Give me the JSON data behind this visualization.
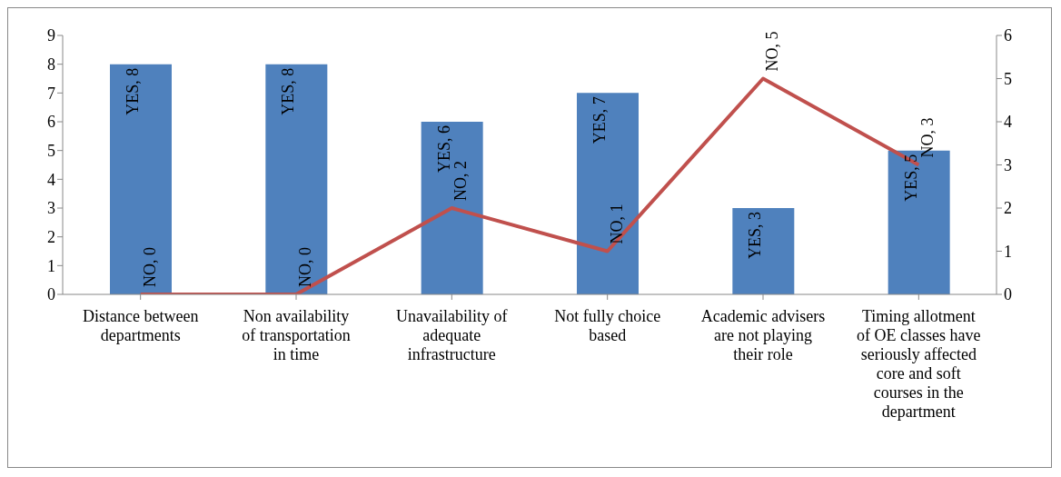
{
  "chart_data": {
    "type": "bar",
    "categories": [
      "Distance between departments",
      "Non availability of transportation in time",
      "Unavailability of adequate infrastructure",
      "Not fully choice based",
      "Academic advisers are not playing their role",
      "Timing allotment of OE classes have seriously affected core and soft courses in the department"
    ],
    "series": [
      {
        "color": "#4f81bd",
        "values": [
          8,
          8,
          6,
          7,
          3,
          5
        ],
        "value_labels": [
          "YES, 8",
          "YES, 8",
          "YES, 6",
          "YES, 7",
          "YES, 3",
          "YES, 5"
        ]
      },
      {
        "type": "line",
        "axis": "y2",
        "color": "#c0504d",
        "values": [
          0,
          0,
          2,
          1,
          5,
          3
        ],
        "value_labels": [
          "NO, 0",
          "NO, 0",
          "NO, 2",
          "NO, 1",
          "NO, 5",
          "NO, 3"
        ]
      }
    ],
    "ylim": [
      0,
      9
    ],
    "yticks": [
      0,
      1,
      2,
      3,
      4,
      5,
      6,
      7,
      8,
      9
    ],
    "y2lim": [
      0,
      6
    ],
    "y2ticks": [
      0,
      1,
      2,
      3,
      4,
      5,
      6
    ],
    "grid": false,
    "legend": false,
    "marker": "none",
    "line_style": "solid"
  }
}
